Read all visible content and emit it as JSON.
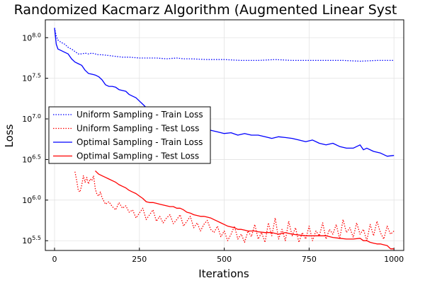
{
  "chart_data": {
    "type": "line",
    "title": "Randomized Kacmarz Algorithm (Augmented Linear Syst",
    "xlabel": "Iterations",
    "ylabel": "Loss",
    "xlim": [
      0,
      1000
    ],
    "ylog10_lim": [
      5.38,
      8.22
    ],
    "yscale": "log10",
    "grid": true,
    "legend_position": "center-left",
    "x_ticks": [
      {
        "value": 0,
        "label": "0"
      },
      {
        "value": 250,
        "label": "250"
      },
      {
        "value": 500,
        "label": "500"
      },
      {
        "value": 750,
        "label": "750"
      },
      {
        "value": 1000,
        "label": "1000"
      }
    ],
    "y_ticks": [
      {
        "value": 5.5,
        "base": "10",
        "exp": "5.5"
      },
      {
        "value": 6.0,
        "base": "10",
        "exp": "6.0"
      },
      {
        "value": 6.5,
        "base": "10",
        "exp": "6.5"
      },
      {
        "value": 7.0,
        "base": "10",
        "exp": "7.0"
      },
      {
        "value": 7.5,
        "base": "10",
        "exp": "7.5"
      },
      {
        "value": 8.0,
        "base": "10",
        "exp": "8.0"
      }
    ],
    "series": [
      {
        "name": "Uniform Sampling - Train Loss",
        "color": "#0000ff",
        "style": "dotted",
        "x": [
          0,
          5,
          10,
          20,
          30,
          40,
          50,
          60,
          70,
          80,
          90,
          100,
          110,
          120,
          130,
          140,
          160,
          180,
          200,
          220,
          250,
          280,
          300,
          330,
          360,
          380,
          400,
          450,
          500,
          550,
          600,
          650,
          700,
          750,
          800,
          850,
          900,
          950,
          1000
        ],
        "y": [
          8.12,
          8.02,
          7.97,
          7.94,
          7.92,
          7.88,
          7.86,
          7.83,
          7.8,
          7.8,
          7.81,
          7.8,
          7.81,
          7.8,
          7.79,
          7.79,
          7.78,
          7.77,
          7.76,
          7.76,
          7.75,
          7.75,
          7.75,
          7.74,
          7.75,
          7.74,
          7.74,
          7.73,
          7.73,
          7.72,
          7.72,
          7.73,
          7.72,
          7.72,
          7.72,
          7.72,
          7.71,
          7.72,
          7.72
        ]
      },
      {
        "name": "Uniform Sampling - Test Loss",
        "color": "#ff0000",
        "style": "dotted",
        "x": [
          60,
          65,
          70,
          75,
          80,
          85,
          90,
          95,
          100,
          105,
          110,
          115,
          120,
          125,
          130,
          135,
          140,
          150,
          160,
          170,
          180,
          190,
          200,
          210,
          220,
          230,
          240,
          250,
          260,
          270,
          280,
          290,
          300,
          310,
          320,
          330,
          340,
          350,
          360,
          370,
          380,
          390,
          400,
          410,
          420,
          430,
          440,
          450,
          460,
          470,
          480,
          490,
          500,
          510,
          520,
          530,
          540,
          550,
          560,
          570,
          580,
          590,
          600,
          610,
          620,
          630,
          640,
          650,
          660,
          670,
          680,
          690,
          700,
          710,
          720,
          730,
          740,
          750,
          760,
          770,
          780,
          790,
          800,
          810,
          820,
          830,
          840,
          850,
          860,
          870,
          880,
          890,
          900,
          910,
          920,
          930,
          940,
          950,
          960,
          970,
          980,
          990,
          1000
        ],
        "y": [
          6.35,
          6.25,
          6.12,
          6.1,
          6.18,
          6.3,
          6.22,
          6.28,
          6.2,
          6.26,
          6.24,
          6.3,
          6.14,
          6.07,
          6.05,
          6.1,
          6.03,
          5.95,
          5.98,
          5.92,
          5.88,
          5.97,
          5.9,
          5.93,
          5.85,
          5.88,
          5.78,
          5.84,
          5.9,
          5.76,
          5.82,
          5.88,
          5.74,
          5.8,
          5.72,
          5.78,
          5.82,
          5.71,
          5.76,
          5.82,
          5.68,
          5.74,
          5.8,
          5.66,
          5.72,
          5.62,
          5.7,
          5.75,
          5.64,
          5.6,
          5.68,
          5.55,
          5.62,
          5.5,
          5.58,
          5.68,
          5.52,
          5.58,
          5.48,
          5.62,
          5.55,
          5.7,
          5.52,
          5.6,
          5.48,
          5.72,
          5.56,
          5.78,
          5.52,
          5.64,
          5.5,
          5.74,
          5.56,
          5.66,
          5.48,
          5.6,
          5.52,
          5.68,
          5.5,
          5.62,
          5.56,
          5.72,
          5.52,
          5.64,
          5.58,
          5.7,
          5.52,
          5.76,
          5.6,
          5.66,
          5.54,
          5.72,
          5.58,
          5.64,
          5.5,
          5.7,
          5.56,
          5.74,
          5.6,
          5.52,
          5.68,
          5.58,
          5.62
        ]
      },
      {
        "name": "Optimal Sampling - Train Loss",
        "color": "#0000ff",
        "style": "solid",
        "x": [
          0,
          5,
          10,
          20,
          30,
          40,
          50,
          60,
          70,
          80,
          90,
          100,
          110,
          120,
          130,
          140,
          150,
          160,
          170,
          180,
          190,
          200,
          210,
          220,
          230,
          240,
          250,
          260,
          270,
          280,
          290,
          300,
          310,
          320,
          330,
          340,
          350,
          360,
          370,
          380,
          390,
          400,
          420,
          440,
          460,
          480,
          500,
          520,
          540,
          560,
          580,
          600,
          620,
          640,
          660,
          680,
          700,
          720,
          740,
          760,
          780,
          800,
          820,
          840,
          860,
          880,
          900,
          910,
          920,
          940,
          960,
          980,
          1000
        ],
        "y": [
          8.12,
          7.92,
          7.86,
          7.84,
          7.82,
          7.8,
          7.74,
          7.7,
          7.68,
          7.66,
          7.6,
          7.56,
          7.55,
          7.54,
          7.52,
          7.48,
          7.42,
          7.4,
          7.4,
          7.39,
          7.36,
          7.35,
          7.34,
          7.3,
          7.28,
          7.26,
          7.22,
          7.18,
          7.14,
          7.13,
          7.12,
          7.12,
          7.1,
          7.08,
          7.06,
          7.04,
          7.03,
          7.02,
          7.0,
          6.98,
          6.96,
          6.94,
          6.9,
          6.88,
          6.86,
          6.84,
          6.82,
          6.83,
          6.8,
          6.82,
          6.8,
          6.8,
          6.78,
          6.76,
          6.78,
          6.77,
          6.76,
          6.74,
          6.72,
          6.74,
          6.7,
          6.68,
          6.7,
          6.66,
          6.64,
          6.64,
          6.68,
          6.62,
          6.64,
          6.6,
          6.58,
          6.54,
          6.55
        ]
      },
      {
        "name": "Optimal Sampling - Test Loss",
        "color": "#ff0000",
        "style": "solid",
        "x": [
          120,
          125,
          130,
          140,
          150,
          160,
          170,
          180,
          190,
          200,
          210,
          220,
          230,
          240,
          250,
          260,
          270,
          280,
          290,
          300,
          310,
          320,
          330,
          340,
          350,
          360,
          370,
          380,
          390,
          400,
          410,
          420,
          430,
          440,
          450,
          460,
          470,
          480,
          490,
          500,
          510,
          520,
          530,
          540,
          550,
          560,
          570,
          580,
          590,
          600,
          620,
          640,
          660,
          680,
          700,
          720,
          740,
          760,
          780,
          800,
          820,
          840,
          860,
          880,
          900,
          910,
          920,
          930,
          940,
          950,
          960,
          970,
          980,
          990,
          1000
        ],
        "y": [
          6.36,
          6.34,
          6.32,
          6.3,
          6.28,
          6.26,
          6.24,
          6.22,
          6.19,
          6.17,
          6.15,
          6.12,
          6.1,
          6.08,
          6.05,
          6.02,
          5.98,
          5.97,
          5.97,
          5.96,
          5.95,
          5.94,
          5.93,
          5.92,
          5.92,
          5.9,
          5.9,
          5.88,
          5.85,
          5.84,
          5.82,
          5.81,
          5.8,
          5.8,
          5.79,
          5.78,
          5.76,
          5.74,
          5.72,
          5.7,
          5.68,
          5.67,
          5.66,
          5.64,
          5.64,
          5.63,
          5.62,
          5.62,
          5.62,
          5.61,
          5.6,
          5.6,
          5.58,
          5.6,
          5.58,
          5.57,
          5.56,
          5.56,
          5.56,
          5.56,
          5.54,
          5.53,
          5.52,
          5.52,
          5.53,
          5.5,
          5.5,
          5.48,
          5.47,
          5.46,
          5.46,
          5.45,
          5.44,
          5.4,
          5.4
        ]
      }
    ]
  }
}
